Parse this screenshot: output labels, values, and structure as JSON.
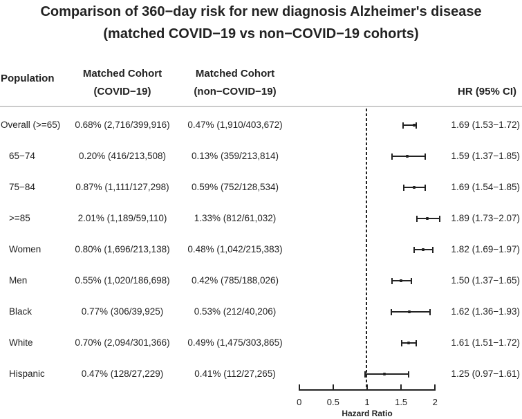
{
  "title": {
    "line1": "Comparison of 360−day risk for new diagnosis Alzheimer's disease",
    "line2": "(matched COVID−19 vs non−COVID−19 cohorts)"
  },
  "columns": {
    "population": "Population",
    "covid_line1": "Matched Cohort",
    "covid_line2": "(COVID−19)",
    "non_covid_line1": "Matched Cohort",
    "non_covid_line2": "(non−COVID−19)",
    "hr": "HR (95% CI)"
  },
  "chart_data": {
    "type": "forest",
    "title": "Comparison of 360−day risk for new diagnosis Alzheimer's disease (matched COVID−19 vs non−COVID−19 cohorts)",
    "xlabel": "Hazard Ratio",
    "xlim": [
      0,
      2
    ],
    "x_ticks": [
      "0",
      "0.5",
      "1",
      "1.5",
      "2"
    ],
    "x_tick_values": [
      0,
      0.5,
      1,
      1.5,
      2
    ],
    "reference_line": 1,
    "grid": false,
    "rows": [
      {
        "population": "Overall (>=65)",
        "indent": false,
        "covid_risk": "0.68% (2,716/399,916)",
        "non_covid_risk": "0.47% (1,910/403,672)",
        "hr": 1.69,
        "ci_low": 1.53,
        "ci_high": 1.72,
        "hr_ci_label": "1.69 (1.53−1.72)"
      },
      {
        "population": "65−74",
        "indent": true,
        "covid_risk": "0.20% (416/213,508)",
        "non_covid_risk": "0.13% (359/213,814)",
        "hr": 1.59,
        "ci_low": 1.37,
        "ci_high": 1.85,
        "hr_ci_label": "1.59 (1.37−1.85)"
      },
      {
        "population": "75−84",
        "indent": true,
        "covid_risk": "0.87% (1,111/127,298)",
        "non_covid_risk": "0.59% (752/128,534)",
        "hr": 1.69,
        "ci_low": 1.54,
        "ci_high": 1.85,
        "hr_ci_label": "1.69 (1.54−1.85)"
      },
      {
        "population": ">=85",
        "indent": true,
        "covid_risk": "2.01% (1,189/59,110)",
        "non_covid_risk": "1.33% (812/61,032)",
        "hr": 1.89,
        "ci_low": 1.73,
        "ci_high": 2.07,
        "hr_ci_label": "1.89 (1.73−2.07)"
      },
      {
        "population": "Women",
        "indent": true,
        "covid_risk": "0.80% (1,696/213,138)",
        "non_covid_risk": "0.48% (1,042/215,383)",
        "hr": 1.82,
        "ci_low": 1.69,
        "ci_high": 1.97,
        "hr_ci_label": "1.82 (1.69−1.97)"
      },
      {
        "population": "Men",
        "indent": true,
        "covid_risk": "0.55% (1,020/186,698)",
        "non_covid_risk": "0.42% (785/188,026)",
        "hr": 1.5,
        "ci_low": 1.37,
        "ci_high": 1.65,
        "hr_ci_label": "1.50 (1.37−1.65)"
      },
      {
        "population": "Black",
        "indent": true,
        "covid_risk": "0.77% (306/39,925)",
        "non_covid_risk": "0.53% (212/40,206)",
        "hr": 1.62,
        "ci_low": 1.36,
        "ci_high": 1.93,
        "hr_ci_label": "1.62 (1.36−1.93)"
      },
      {
        "population": "White",
        "indent": true,
        "covid_risk": "0.70% (2,094/301,366)",
        "non_covid_risk": "0.49% (1,475/303,865)",
        "hr": 1.61,
        "ci_low": 1.51,
        "ci_high": 1.72,
        "hr_ci_label": "1.61 (1.51−1.72)"
      },
      {
        "population": "Hispanic",
        "indent": true,
        "covid_risk": "0.47% (128/27,229)",
        "non_covid_risk": "0.41% (112/27,265)",
        "hr": 1.25,
        "ci_low": 0.97,
        "ci_high": 1.61,
        "hr_ci_label": "1.25 (0.97−1.61)"
      }
    ]
  },
  "colors": {
    "ink": "#222222",
    "divider": "#cbcbcb",
    "background": "#ffffff"
  }
}
